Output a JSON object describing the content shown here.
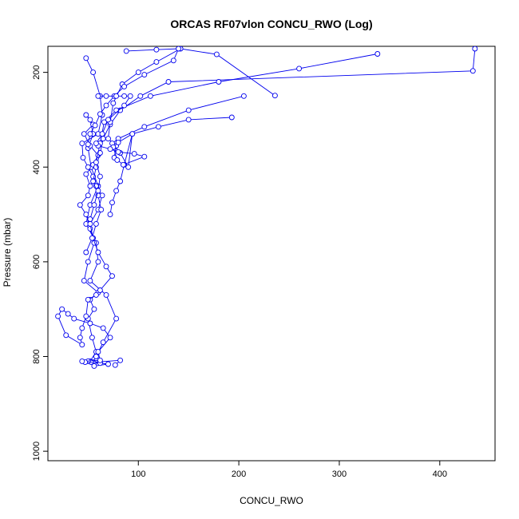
{
  "chart_data": {
    "type": "line",
    "title": "ORCAS RF07vlon CONCU_RWO (Log)",
    "xlabel": "CONCU_RWO",
    "ylabel": "Pressure (mbar)",
    "xlim": [
      10,
      455
    ],
    "ylim": [
      1020,
      145
    ],
    "y_reversed": true,
    "xticks": [
      100,
      200,
      300,
      400
    ],
    "yticks": [
      200,
      400,
      600,
      800,
      1000
    ],
    "grid": false,
    "legend": "none",
    "color": "#0000ee",
    "marker": "open-circle",
    "series": [
      {
        "x": [
          77,
          82,
          55,
          58,
          65,
          78,
          68,
          52,
          60,
          58,
          48,
          52,
          60,
          53,
          50,
          55,
          52,
          48,
          55,
          46,
          52,
          60,
          55,
          48,
          52,
          50,
          42,
          48,
          52,
          56,
          50,
          46,
          60,
          52,
          56,
          50,
          54,
          58,
          52,
          62,
          56,
          53,
          50
        ],
        "y": [
          818,
          808,
          812,
          800,
          770,
          720,
          670,
          640,
          600,
          560,
          520,
          480,
          440,
          400,
          360,
          330,
          300,
          290,
          310,
          330,
          355,
          375,
          395,
          415,
          440,
          460,
          480,
          500,
          530,
          560,
          600,
          640,
          665,
          680,
          700,
          720,
          760,
          790,
          810,
          812,
          815,
          812,
          810
        ]
      },
      {
        "x": [
          56,
          70,
          62,
          47,
          44,
          62,
          60,
          72,
          65,
          52,
          36,
          30,
          24,
          20,
          28,
          44,
          42,
          44,
          48,
          50,
          58,
          62,
          74,
          68,
          60,
          55,
          52,
          60,
          64,
          58,
          55,
          50,
          45,
          44,
          60,
          64,
          62,
          55,
          48
        ],
        "y": [
          820,
          816,
          814,
          812,
          810,
          808,
          790,
          760,
          740,
          730,
          720,
          710,
          700,
          715,
          755,
          775,
          760,
          740,
          715,
          680,
          670,
          660,
          630,
          610,
          580,
          550,
          520,
          490,
          460,
          440,
          420,
          400,
          380,
          350,
          330,
          290,
          250,
          200,
          170
        ]
      },
      {
        "x": [
          435,
          433,
          130,
          102,
          82,
          72,
          65,
          62,
          58,
          55,
          60,
          63,
          58,
          54,
          48
        ],
        "y": [
          150,
          197,
          220,
          250,
          280,
          310,
          340,
          370,
          400,
          430,
          460,
          490,
          520,
          550,
          580
        ]
      },
      {
        "x": [
          338,
          260,
          180,
          112,
          78,
          66,
          62,
          58,
          62,
          60,
          56,
          52
        ],
        "y": [
          161,
          192,
          220,
          250,
          280,
          305,
          350,
          390,
          420,
          450,
          480,
          510
        ]
      },
      {
        "x": [
          236,
          178,
          142,
          118,
          100,
          84,
          75,
          72,
          70,
          78,
          76
        ],
        "y": [
          249,
          162,
          150,
          178,
          200,
          225,
          265,
          305,
          340,
          355,
          380
        ]
      },
      {
        "x": [
          205,
          150,
          106,
          80,
          74,
          82,
          90,
          94,
          86,
          82,
          78,
          74,
          72
        ],
        "y": [
          250,
          280,
          315,
          340,
          350,
          370,
          400,
          330,
          395,
          430,
          450,
          475,
          500
        ]
      },
      {
        "x": [
          193,
          150,
          120,
          94,
          80,
          75,
          79,
          85,
          106,
          96,
          80,
          72,
          60
        ],
        "y": [
          295,
          300,
          315,
          330,
          348,
          358,
          385,
          395,
          378,
          372,
          368,
          362,
          355
        ]
      },
      {
        "x": [
          88,
          118,
          140,
          135,
          106,
          86,
          76,
          68,
          62,
          57,
          52,
          50
        ],
        "y": [
          155,
          152,
          150,
          175,
          205,
          230,
          250,
          270,
          288,
          312,
          330,
          352
        ]
      },
      {
        "x": [
          60,
          68,
          78,
          86,
          92,
          86,
          70,
          64,
          58
        ],
        "y": [
          250,
          250,
          250,
          250,
          250,
          270,
          300,
          330,
          350
        ]
      }
    ]
  }
}
